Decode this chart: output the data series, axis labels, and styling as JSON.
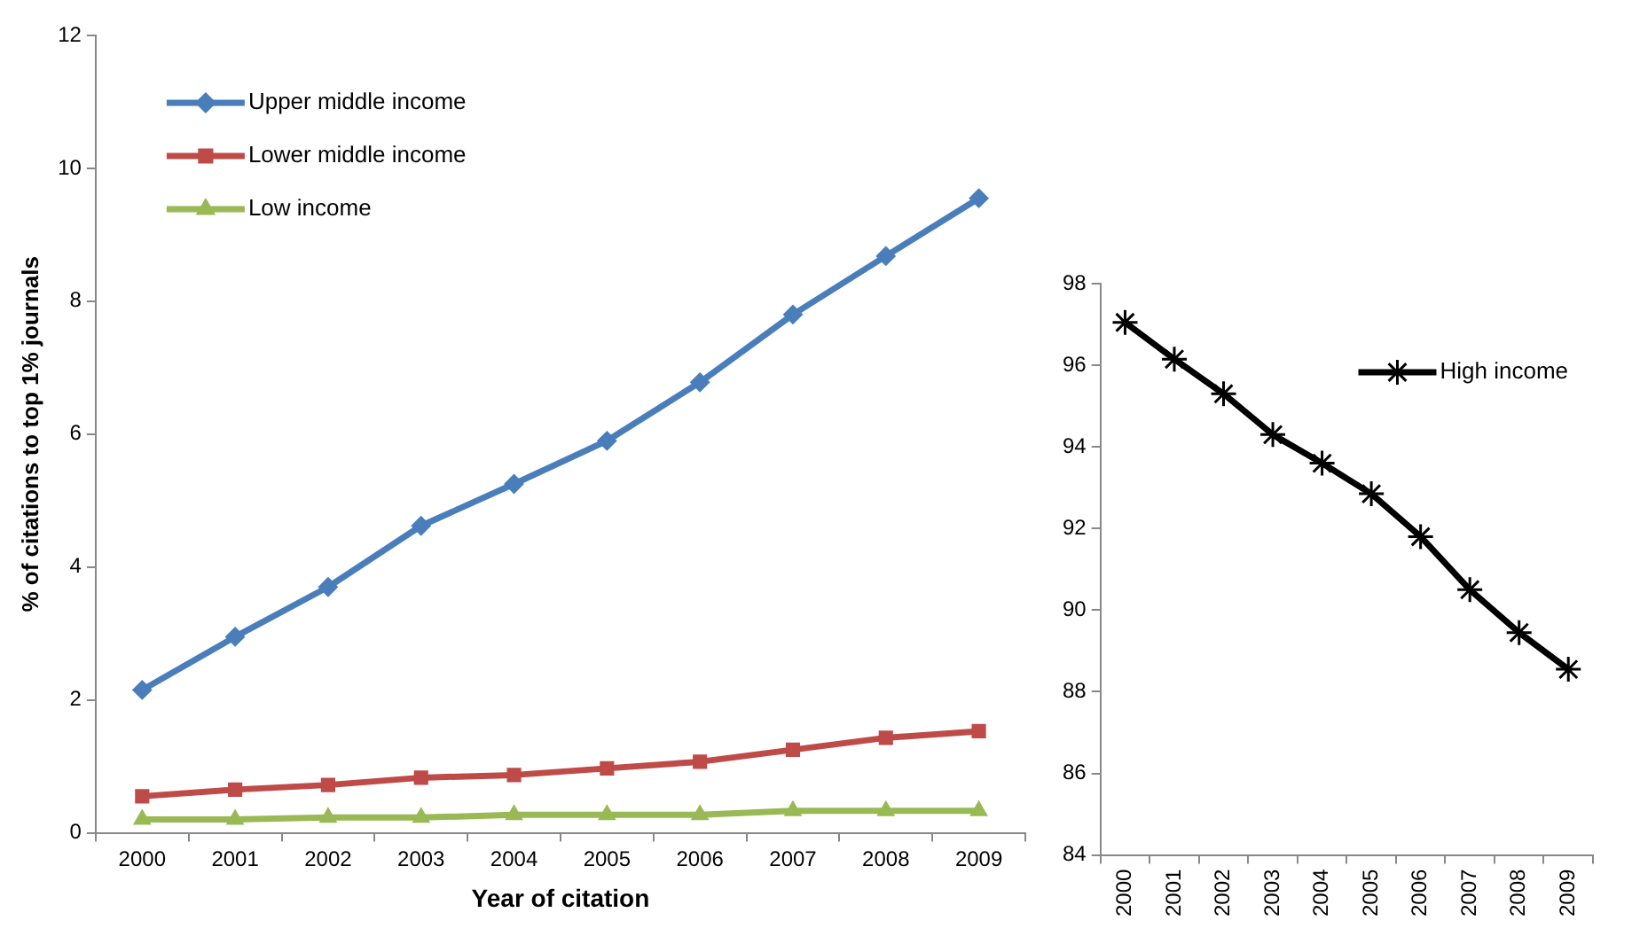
{
  "chart_data": [
    {
      "type": "line",
      "xlabel": "Year of citation",
      "ylabel": "% of citations to top 1% journals",
      "categories": [
        "2000",
        "2001",
        "2002",
        "2003",
        "2004",
        "2005",
        "2006",
        "2007",
        "2008",
        "2009"
      ],
      "series": [
        {
          "name": "Upper middle income",
          "color": "#4a7ebb",
          "marker": "diamond",
          "values": [
            2.15,
            2.95,
            3.7,
            4.62,
            5.25,
            5.9,
            6.78,
            7.8,
            8.68,
            9.55
          ]
        },
        {
          "name": "Lower middle income",
          "color": "#be4b48",
          "marker": "square",
          "values": [
            0.55,
            0.65,
            0.72,
            0.83,
            0.87,
            0.97,
            1.07,
            1.25,
            1.43,
            1.53
          ]
        },
        {
          "name": "Low income",
          "color": "#98b954",
          "marker": "triangle",
          "values": [
            0.2,
            0.2,
            0.23,
            0.23,
            0.27,
            0.27,
            0.27,
            0.33,
            0.33,
            0.33
          ]
        }
      ],
      "ylim": [
        0,
        12
      ],
      "yticks": [
        0,
        2,
        4,
        6,
        8,
        10,
        12
      ],
      "grid": false,
      "legend": "top left"
    },
    {
      "type": "line",
      "categories": [
        "2000",
        "2001",
        "2002",
        "2003",
        "2004",
        "2005",
        "2006",
        "2007",
        "2008",
        "2009"
      ],
      "series": [
        {
          "name": "High income",
          "color": "#000000",
          "marker": "cross",
          "values": [
            97.05,
            96.15,
            95.3,
            94.3,
            93.6,
            92.85,
            91.8,
            90.5,
            89.45,
            88.55
          ]
        }
      ],
      "ylim": [
        84,
        98
      ],
      "yticks": [
        84,
        86,
        88,
        90,
        92,
        94,
        96,
        98
      ],
      "grid": false,
      "legend": "top right"
    }
  ]
}
